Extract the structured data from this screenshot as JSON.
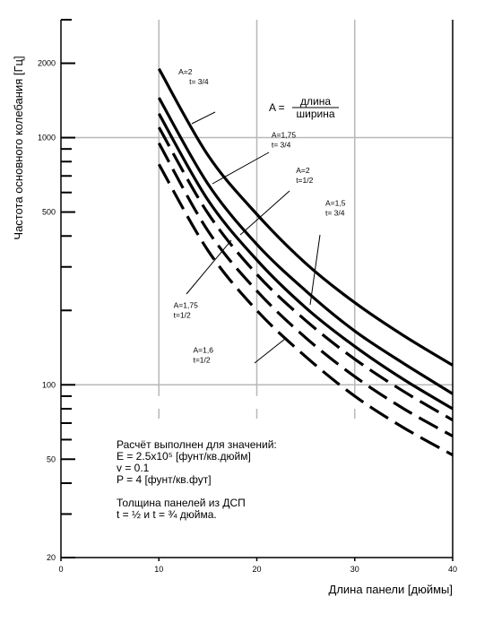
{
  "chart_data": {
    "type": "line",
    "xlabel": "Длина панели [дюймы]",
    "ylabel": "Частота основного колебания [Гц]",
    "x_scale": "linear",
    "y_scale": "log",
    "xlim": [
      0,
      40
    ],
    "ylim": [
      20,
      3000
    ],
    "x_ticks": [
      0,
      10,
      20,
      30,
      40
    ],
    "y_ticks_labeled": [
      20,
      50,
      100,
      500,
      1000,
      2000
    ],
    "grid": true,
    "grid_x": [
      10,
      20,
      30,
      40
    ],
    "grid_y": [
      100,
      1000
    ],
    "series": [
      {
        "line_style": "solid",
        "x": [
          10,
          15,
          20,
          25,
          30,
          35,
          40
        ],
        "y": [
          1900,
          850,
          490,
          310,
          215,
          158,
          120
        ]
      },
      {
        "line_style": "solid",
        "x": [
          10,
          15,
          20,
          25,
          30,
          35,
          40
        ],
        "y": [
          1450,
          650,
          370,
          240,
          165,
          122,
          92
        ]
      },
      {
        "line_style": "solid",
        "x": [
          10,
          15,
          20,
          25,
          30,
          35,
          40
        ],
        "y": [
          1250,
          560,
          320,
          205,
          143,
          105,
          80
        ]
      },
      {
        "line_style": "dashed",
        "x": [
          10,
          15,
          20,
          25,
          30,
          35,
          40
        ],
        "y": [
          1100,
          495,
          280,
          182,
          127,
          94,
          72
        ]
      },
      {
        "line_style": "dashed",
        "x": [
          10,
          15,
          20,
          25,
          30,
          35,
          40
        ],
        "y": [
          950,
          420,
          240,
          155,
          108,
          80,
          62
        ]
      },
      {
        "line_style": "dashed",
        "x": [
          10,
          15,
          20,
          25,
          30,
          35,
          40
        ],
        "y": [
          780,
          350,
          200,
          130,
          90,
          67,
          52
        ]
      }
    ],
    "annotations": [
      {
        "lines": [
          "A=2",
          "t= 3/4"
        ],
        "x": 12,
        "y": 1800
      },
      {
        "lines": [
          "A=1,75",
          "t= 3/4"
        ],
        "x": 21.5,
        "y": 1000
      },
      {
        "lines": [
          "A=2",
          "t=1/2"
        ],
        "x": 24,
        "y": 720
      },
      {
        "lines": [
          "A=1,5",
          "t= 3/4"
        ],
        "x": 27,
        "y": 530
      },
      {
        "lines": [
          "A=1,75",
          "t=1/2"
        ],
        "x": 11.5,
        "y": 205
      },
      {
        "lines": [
          "A=1,6",
          "t=1/2"
        ],
        "x": 13.5,
        "y": 135
      }
    ],
    "legend_formula": {
      "lhs": "A =",
      "numerator": "длина",
      "denominator": "ширина"
    },
    "notes": [
      "Расчёт выполнен для значений:",
      "E = 2.5x10⁵ [фунт/кв.дюйм]",
      "v = 0.1",
      "P = 4 [фунт/кв.фут]",
      "",
      "Толщина панелей из ДСП",
      "t = ½ и t = ¾ дюйма."
    ]
  }
}
